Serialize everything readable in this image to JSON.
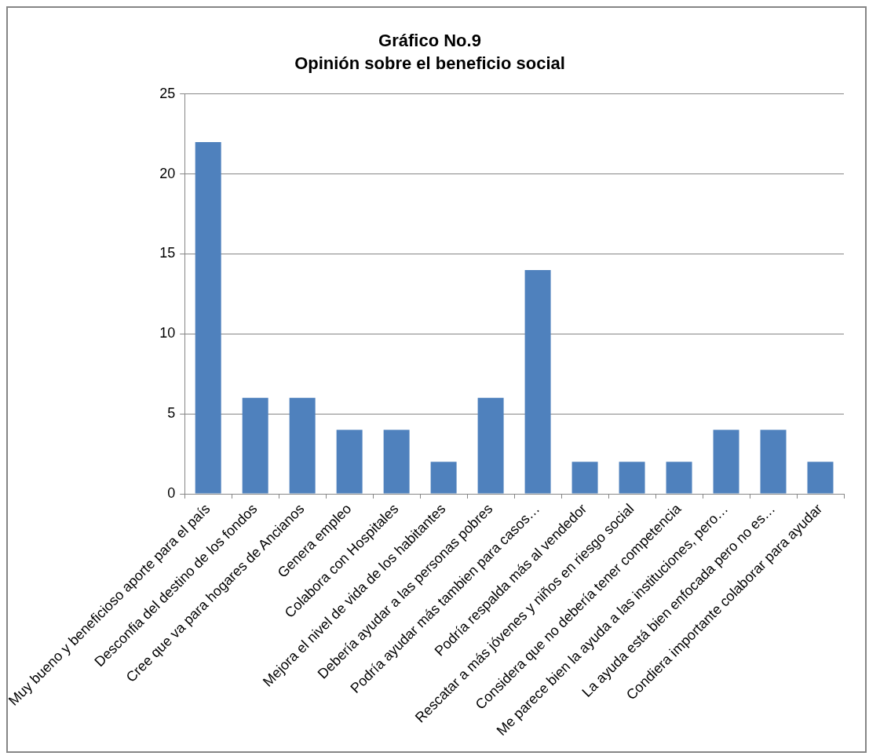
{
  "chart_data": {
    "type": "bar",
    "title": "Gráfico No.9",
    "subtitle": "Opinión sobre el beneficio social",
    "categories": [
      "Muy bueno y beneficioso aporte para el país",
      "Desconfia del destino de los fondos",
      "Cree que va para hogares de Ancianos",
      "Genera empleo",
      "Colabora con Hospitales",
      "Mejora el nivel de vida de los habitantes",
      "Debería ayudar a las personas pobres",
      "Podría ayudar más tambien para casos…",
      "Podría respalda más al vendedor",
      "Rescatar a más jóvenes y niños en riesgo social",
      "Considera que no debería tener competencia",
      "Me parece bien la ayuda a las instituciones, pero…",
      "La ayuda está bien enfocada pero no es…",
      "Condiera importante colaborar para ayudar"
    ],
    "values": [
      22,
      6,
      6,
      4,
      4,
      2,
      6,
      14,
      2,
      2,
      2,
      4,
      4,
      2
    ],
    "color": "#4f81bd",
    "ylim": [
      0,
      25
    ],
    "yticks": [
      0,
      5,
      10,
      15,
      20,
      25
    ],
    "grid": "y",
    "legend": false
  }
}
